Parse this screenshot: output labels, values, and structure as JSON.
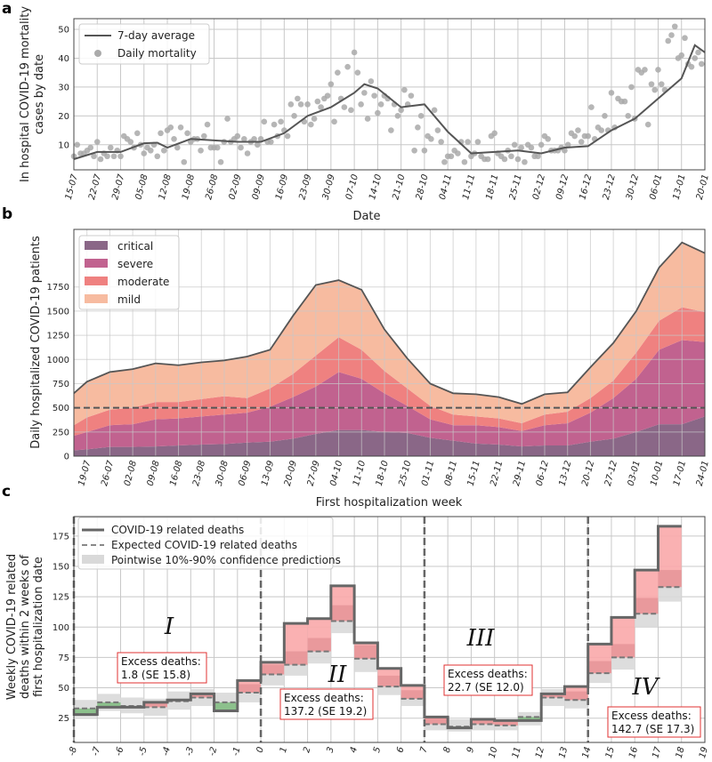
{
  "chart_data": [
    {
      "panel": "a",
      "type": "line",
      "xlabel": "Date",
      "ylabel": [
        "In hospital COVID-19 mortality",
        "cases by date"
      ],
      "ylim": [
        1.3,
        53.7
      ],
      "yticks": [
        10,
        20,
        30,
        40,
        50
      ],
      "xlim_days": [
        0,
        189
      ],
      "xtick_labels": [
        "15-07",
        "22-07",
        "29-07",
        "05-08",
        "12-08",
        "19-08",
        "26-08",
        "02-09",
        "09-09",
        "16-09",
        "23-09",
        "30-09",
        "07-10",
        "14-10",
        "21-10",
        "28-10",
        "04-11",
        "11-11",
        "18-11",
        "25-11",
        "02-12",
        "09-12",
        "16-12",
        "23-12",
        "30-12",
        "06-01",
        "13-01",
        "20-01"
      ],
      "legend": [
        "7-day average",
        "Daily mortality"
      ],
      "grid": true,
      "series": [
        {
          "name": "7-day average",
          "x_days": [
            0,
            7,
            14,
            21,
            25,
            28,
            35,
            42,
            49,
            56,
            63,
            70,
            77,
            84,
            87,
            91,
            98,
            105,
            112,
            119,
            126,
            133,
            140,
            147,
            154,
            161,
            168,
            175,
            182,
            186,
            189
          ],
          "values": [
            5,
            7.5,
            7.5,
            10.5,
            10.7,
            9,
            12,
            11.5,
            11,
            11,
            14,
            20,
            23,
            28,
            31,
            29.5,
            23,
            24,
            14.5,
            7,
            7.5,
            8,
            7,
            9,
            9.5,
            15,
            19,
            26,
            33,
            44.5,
            42
          ]
        },
        {
          "name": "Daily mortality",
          "values": [
            6,
            10,
            7,
            7,
            8,
            9,
            6,
            11,
            5,
            7,
            6,
            9,
            6,
            8,
            6,
            13,
            12,
            11,
            9,
            14,
            10,
            7,
            9,
            8,
            10,
            6,
            14,
            8,
            15,
            16,
            12,
            9,
            16,
            4,
            14,
            11,
            12,
            12,
            8,
            13,
            17,
            9,
            9,
            9,
            4,
            11,
            19,
            11,
            12,
            13,
            9,
            12,
            7,
            11,
            12,
            10,
            12,
            18,
            11,
            11,
            17,
            13,
            18,
            15,
            13,
            24,
            20,
            26,
            24,
            18,
            24,
            17,
            19,
            25,
            23,
            26,
            27,
            31,
            18,
            35,
            26,
            23,
            37,
            22,
            42,
            35,
            24,
            28,
            19,
            32,
            27,
            21,
            24,
            27,
            26,
            15,
            24,
            20,
            22,
            29,
            24,
            27,
            8,
            16,
            20,
            8,
            13,
            12,
            22,
            15,
            11,
            4,
            6,
            6,
            8,
            7,
            11,
            4,
            11,
            6,
            7,
            11,
            6,
            5,
            5,
            13,
            14,
            7,
            6,
            5,
            8,
            6,
            10,
            5,
            9,
            4,
            10,
            9,
            6,
            6,
            10,
            13,
            12,
            8,
            8,
            8,
            9,
            8,
            10,
            14,
            13,
            15,
            11,
            13,
            13,
            23,
            12,
            16,
            15,
            20,
            15,
            28,
            16,
            26,
            25,
            25,
            20,
            30,
            19,
            36,
            35,
            36,
            17,
            31,
            29,
            36,
            31,
            29,
            46,
            48,
            51,
            40,
            41,
            47,
            38,
            37,
            40,
            42,
            38
          ]
        }
      ]
    },
    {
      "panel": "b",
      "type": "area",
      "stacked": true,
      "xlabel": "First hospitalization week",
      "ylabel": "Daily hospitalized COVID-19 patients",
      "ylim": [
        0,
        2345
      ],
      "yticks": [
        0,
        250,
        500,
        750,
        1000,
        1250,
        1500,
        1750
      ],
      "xlim_days": [
        0,
        193
      ],
      "xtick_labels": [
        "19-07",
        "26-07",
        "02-08",
        "09-08",
        "16-08",
        "23-08",
        "30-08",
        "06-09",
        "13-09",
        "20-09",
        "27-09",
        "04-10",
        "11-10",
        "18-10",
        "25-10",
        "01-11",
        "08-11",
        "15-11",
        "22-11",
        "29-11",
        "06-12",
        "13-12",
        "20-12",
        "27-12",
        "03-01",
        "10-01",
        "17-01",
        "24-01"
      ],
      "x_days": [
        0,
        4,
        11,
        18,
        25,
        32,
        39,
        46,
        53,
        60,
        67,
        74,
        81,
        88,
        95,
        102,
        109,
        116,
        123,
        130,
        137,
        144,
        151,
        158,
        165,
        172,
        179,
        186,
        193
      ],
      "reference_line": 500,
      "grid": true,
      "legend": "top-left",
      "series": [
        {
          "name": "critical",
          "color": "#8a6787",
          "values": [
            60,
            70,
            95,
            95,
            100,
            110,
            120,
            125,
            140,
            150,
            180,
            230,
            270,
            270,
            250,
            240,
            190,
            160,
            130,
            120,
            100,
            110,
            110,
            150,
            180,
            250,
            330,
            330,
            410
          ]
        },
        {
          "name": "severe",
          "color": "#c1628f",
          "values": [
            150,
            180,
            225,
            235,
            280,
            280,
            290,
            305,
            310,
            360,
            430,
            490,
            600,
            530,
            400,
            280,
            190,
            160,
            190,
            180,
            160,
            210,
            230,
            300,
            420,
            550,
            770,
            870,
            770
          ]
        },
        {
          "name": "moderate",
          "color": "#ef8180",
          "values": [
            110,
            150,
            160,
            170,
            180,
            170,
            180,
            190,
            150,
            190,
            240,
            320,
            360,
            300,
            230,
            180,
            140,
            110,
            90,
            90,
            80,
            110,
            120,
            150,
            180,
            270,
            300,
            340,
            310
          ]
        },
        {
          "name": "mild",
          "color": "#f7bba0",
          "values": [
            330,
            370,
            390,
            400,
            400,
            380,
            380,
            370,
            430,
            400,
            600,
            730,
            590,
            620,
            430,
            310,
            230,
            220,
            230,
            220,
            200,
            210,
            200,
            320,
            390,
            430,
            550,
            670,
            610
          ]
        }
      ]
    },
    {
      "panel": "c",
      "type": "step",
      "ylabel": [
        "Weekly COVID-19 related",
        "deaths within 2 weeks of",
        "first hospitalization date"
      ],
      "ylim": [
        5,
        191
      ],
      "yticks": [
        25,
        50,
        75,
        100,
        125,
        150,
        175
      ],
      "xlim": [
        -8,
        19
      ],
      "xticks": [
        -8,
        -7,
        -6,
        -5,
        -4,
        -3,
        -2,
        -1,
        0,
        1,
        2,
        3,
        4,
        5,
        6,
        7,
        8,
        9,
        10,
        11,
        12,
        13,
        14,
        15,
        16,
        17,
        18,
        19
      ],
      "legend": [
        "COVID-19 related deaths",
        "Expected COVID-19 related deaths",
        "Pointwise 10%-90% confidence predictions"
      ],
      "period_boundaries": [
        -8,
        0,
        7,
        14
      ],
      "weeks": [
        -8,
        -7,
        -6,
        -5,
        -4,
        -3,
        -2,
        -1,
        0,
        1,
        2,
        3,
        4,
        5,
        6,
        7,
        8,
        9,
        10,
        11,
        12,
        13,
        14,
        15,
        16,
        17
      ],
      "observed": [
        28,
        34,
        34,
        38,
        40,
        45,
        31,
        56,
        71,
        103,
        107,
        134,
        87,
        66,
        52,
        26,
        17,
        24,
        23,
        23,
        45,
        51,
        86,
        108,
        147,
        183
      ],
      "expected": [
        33,
        38,
        35,
        34,
        39,
        42,
        38,
        46,
        61,
        69,
        80,
        105,
        74,
        51,
        41,
        20,
        18,
        20,
        19,
        26,
        42,
        40,
        62,
        75,
        111,
        133
      ],
      "ci_low": [
        26,
        31,
        29,
        27,
        32,
        35,
        31,
        38,
        52,
        60,
        70,
        95,
        63,
        44,
        35,
        15,
        14,
        15,
        15,
        19,
        35,
        33,
        54,
        65,
        100,
        121
      ],
      "ci_high": [
        40,
        45,
        42,
        41,
        47,
        49,
        46,
        53,
        69,
        80,
        91,
        118,
        85,
        60,
        48,
        25,
        24,
        25,
        24,
        30,
        49,
        47,
        72,
        86,
        124,
        147
      ],
      "periods": [
        {
          "label": "I",
          "excess_title": "Excess deaths:",
          "excess_value": "1.8 (SE 15.8)"
        },
        {
          "label": "II",
          "excess_title": "Excess deaths:",
          "excess_value": "137.2 (SE 19.2)"
        },
        {
          "label": "III",
          "excess_title": "Excess deaths:",
          "excess_value": "22.7 (SE 12.0)"
        },
        {
          "label": "IV",
          "excess_title": "Excess deaths:",
          "excess_value": "142.7 (SE 17.3)"
        }
      ],
      "colors": {
        "excess": "#f9a9aa",
        "excess_ci": "#e08a8f",
        "deficit": "#8cc08c",
        "ci": "#d9d9d9",
        "line": "#666666"
      }
    }
  ],
  "panel_labels": [
    "a",
    "b",
    "c"
  ]
}
